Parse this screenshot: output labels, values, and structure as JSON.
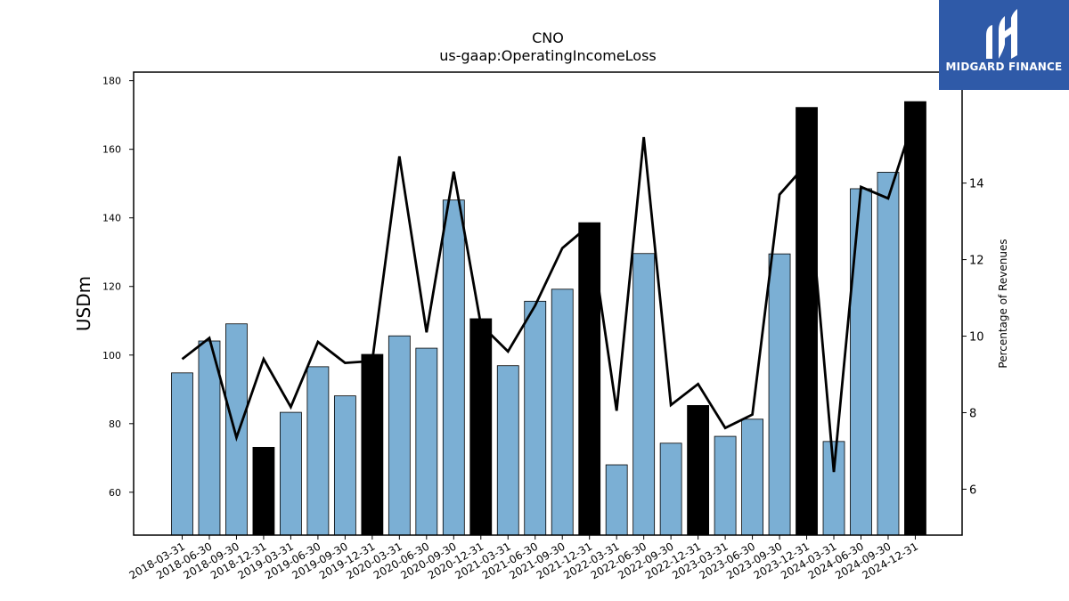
{
  "chart_data": {
    "type": "bar",
    "title": "CNO",
    "subtitle": "us-gaap:OperatingIncomeLoss",
    "ylabel": "USDm",
    "y2label": "Percentage of Revenues",
    "ylim": [
      47.5,
      182.5
    ],
    "y2lim": [
      4.8,
      16.9
    ],
    "yticks": [
      60,
      80,
      100,
      120,
      140,
      160,
      180
    ],
    "y2ticks": [
      6,
      8,
      10,
      12,
      14
    ],
    "categories": [
      "2018-03-31",
      "2018-06-30",
      "2018-09-30",
      "2018-12-31",
      "2019-03-31",
      "2019-06-30",
      "2019-09-30",
      "2019-12-31",
      "2020-03-31",
      "2020-06-30",
      "2020-09-30",
      "2020-12-31",
      "2021-03-31",
      "2021-06-30",
      "2021-09-30",
      "2021-12-31",
      "2022-03-31",
      "2022-06-30",
      "2022-09-30",
      "2022-12-31",
      "2023-03-31",
      "2023-06-30",
      "2023-09-30",
      "2023-12-31",
      "2024-03-31",
      "2024-06-30",
      "2024-09-30",
      "2024-12-31"
    ],
    "series": [
      {
        "type": "bar",
        "values": [
          94.8,
          104.1,
          109.1,
          73.1,
          83.3,
          96.6,
          88.1,
          100.2,
          105.6,
          102.0,
          145.2,
          110.6,
          96.9,
          115.7,
          119.2,
          138.6,
          68.0,
          129.6,
          74.3,
          85.3,
          76.3,
          81.3,
          129.5,
          172.2,
          74.8,
          148.5,
          153.3,
          173.9
        ],
        "highlight_quarter": "12-31"
      },
      {
        "type": "line",
        "axis": "right",
        "values": [
          9.4,
          9.95,
          7.35,
          9.4,
          8.15,
          9.85,
          9.3,
          9.35,
          14.7,
          10.1,
          14.3,
          10.3,
          9.6,
          10.8,
          12.3,
          12.9,
          8.05,
          15.2,
          8.2,
          8.75,
          7.6,
          7.95,
          13.7,
          14.5,
          6.45,
          13.9,
          13.6,
          15.8
        ]
      }
    ],
    "colors": {
      "bar": "#7bafd4",
      "highlight_bar": "#000000",
      "line": "#000000"
    }
  },
  "logo": {
    "text": "MIDGARD FINANCE",
    "bg": "#2f5aa8"
  }
}
